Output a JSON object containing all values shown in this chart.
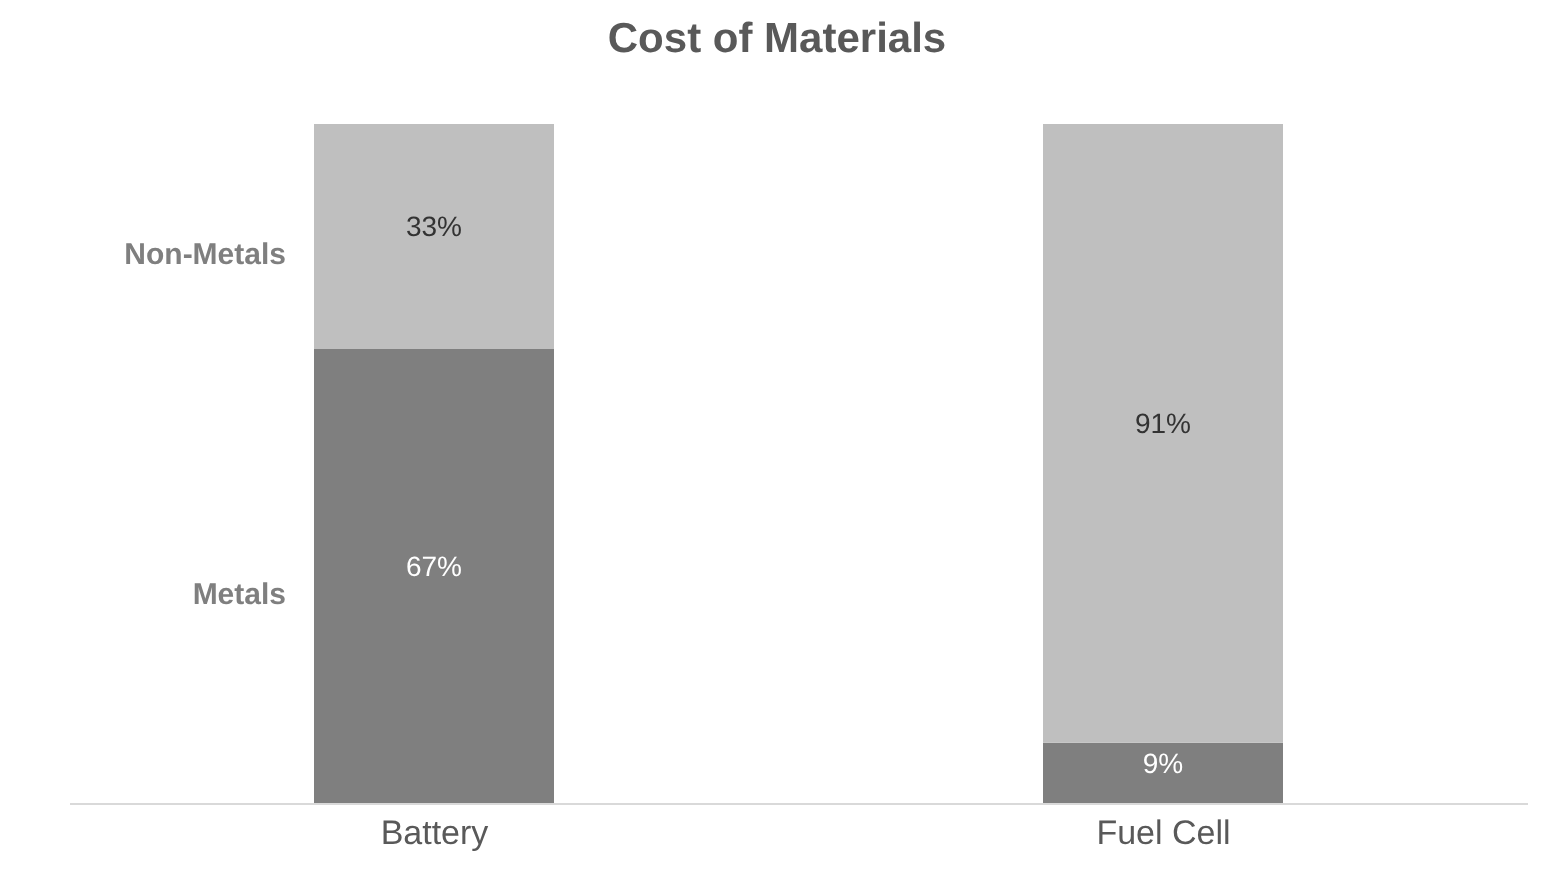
{
  "chart_data": {
    "type": "bar",
    "title": "Cost of Materials",
    "categories": [
      "Battery",
      "Fuel Cell"
    ],
    "stacked": true,
    "legend": false,
    "grid": false,
    "series": [
      {
        "name": "Metals",
        "color": "#7f7f7f",
        "values": [
          67,
          9
        ],
        "value_labels": [
          "67%",
          "9%"
        ]
      },
      {
        "name": "Non-Metals",
        "color": "#bfbfbf",
        "values": [
          33,
          91
        ],
        "value_labels": [
          "33%",
          "91%"
        ]
      }
    ]
  }
}
